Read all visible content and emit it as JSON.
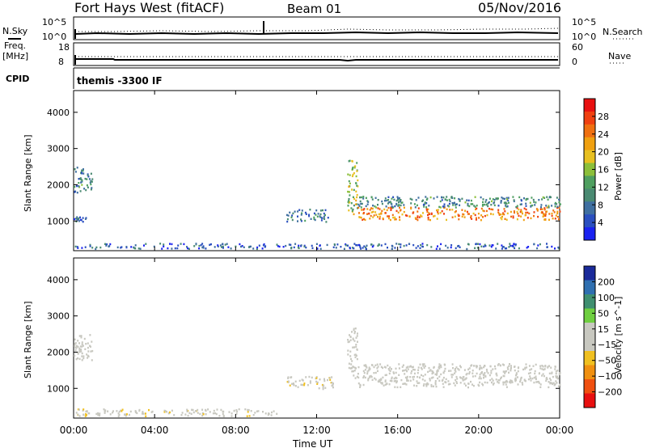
{
  "header": {
    "title": "Fort Hays West (fitACF)",
    "beam": "Beam 01",
    "date": "05/Nov/2016"
  },
  "strips": {
    "nsky_label": "N.Sky",
    "nsearch_label": "N.Search",
    "freq_label_line1": "Freq.",
    "freq_label_line2": "[MHz]",
    "nave_label": "Nave",
    "cpid_label": "CPID",
    "cpid_value": "themis -3300 IF",
    "nsky_ticks": [
      "10^5",
      "10^0"
    ],
    "nsearch_ticks": [
      "10^5",
      "10^0"
    ],
    "freq_ticks": [
      "18",
      "8"
    ],
    "nave_ticks": [
      "60",
      "0"
    ]
  },
  "axes": {
    "xlabel": "Time UT",
    "ylabel": "Slant Range [km]"
  },
  "chart_data": [
    {
      "type": "heatmap",
      "panel": "power",
      "ylabel": "Slant Range [km]",
      "xlabel": "Time UT",
      "x_ticks": [
        "00:00",
        "04:00",
        "08:00",
        "12:00",
        "16:00",
        "20:00",
        "00:00"
      ],
      "xlim_hours": [
        0,
        24
      ],
      "y_ticks": [
        1000,
        2000,
        3000,
        4000
      ],
      "ylim": [
        180,
        4600
      ],
      "colorbar": {
        "label": "Power [dB]",
        "ticks": [
          4,
          8,
          12,
          16,
          20,
          24,
          28
        ],
        "range": [
          0,
          32
        ],
        "colors": [
          "#1a22f0",
          "#2a4fbf",
          "#3f6fa0",
          "#4a8a72",
          "#4f9f60",
          "#8cbf3a",
          "#e8c020",
          "#f0a010",
          "#f07010",
          "#f04010",
          "#e81010"
        ]
      },
      "regions": [
        {
          "t": [
            0.0,
            0.9
          ],
          "r": [
            1800,
            2500
          ],
          "level": 10
        },
        {
          "t": [
            0.0,
            0.6
          ],
          "r": [
            1000,
            1150
          ],
          "level": 7
        },
        {
          "t": [
            10.5,
            12.8
          ],
          "r": [
            1000,
            1350
          ],
          "level": 8
        },
        {
          "t": [
            13.5,
            14.0
          ],
          "r": [
            1200,
            2700
          ],
          "level": 16
        },
        {
          "t": [
            14.0,
            24.0
          ],
          "r": [
            1050,
            1400
          ],
          "level": 24
        },
        {
          "t": [
            14.0,
            24.0
          ],
          "r": [
            1400,
            1700
          ],
          "level": 10
        },
        {
          "t": [
            0.0,
            24.0
          ],
          "r": [
            250,
            400
          ],
          "level": 6
        }
      ]
    },
    {
      "type": "heatmap",
      "panel": "velocity",
      "ylabel": "Slant Range [km]",
      "xlabel": "Time UT",
      "x_ticks": [
        "00:00",
        "04:00",
        "08:00",
        "12:00",
        "16:00",
        "20:00",
        "00:00"
      ],
      "xlim_hours": [
        0,
        24
      ],
      "y_ticks": [
        1000,
        2000,
        3000,
        4000
      ],
      "ylim": [
        180,
        4600
      ],
      "colorbar": {
        "label": "Velocity [m s^-1]",
        "ticks": [
          200,
          100,
          50,
          15,
          -15,
          -50,
          -100,
          -200
        ],
        "range": [
          -250,
          250
        ],
        "colors": [
          "#1a2a9a",
          "#2f6fb0",
          "#3f8f70",
          "#6fcf40",
          "#c8c8c0",
          "#c8c8c0",
          "#f0c020",
          "#f09010",
          "#f05010",
          "#e81010"
        ]
      },
      "regions": [
        {
          "t": [
            0.0,
            0.9
          ],
          "r": [
            1800,
            2500
          ],
          "level": 0
        },
        {
          "t": [
            0.0,
            10.0
          ],
          "r": [
            250,
            450
          ],
          "level": -40
        },
        {
          "t": [
            10.5,
            12.8
          ],
          "r": [
            1000,
            1350
          ],
          "level": -40
        },
        {
          "t": [
            13.5,
            14.0
          ],
          "r": [
            1200,
            2700
          ],
          "level": 30
        },
        {
          "t": [
            14.0,
            24.0
          ],
          "r": [
            1050,
            1700
          ],
          "level": 0
        }
      ]
    }
  ]
}
